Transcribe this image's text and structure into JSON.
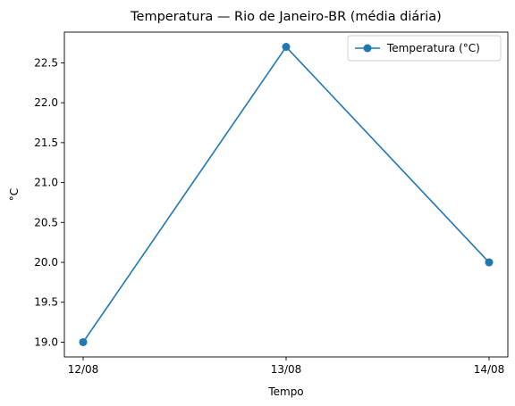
{
  "chart_data": {
    "type": "line",
    "title": "Temperatura — Rio de Janeiro-BR (média diária)",
    "xlabel": "Tempo",
    "ylabel": "°C",
    "categories": [
      "12/08",
      "13/08",
      "14/08"
    ],
    "series": [
      {
        "name": "Temperatura (°C)",
        "values": [
          19.0,
          22.7,
          20.0
        ],
        "color": "#1f77b4",
        "marker": "circle"
      }
    ],
    "ylim": [
      18.815,
      22.885
    ],
    "yticks": [
      19.0,
      19.5,
      20.0,
      20.5,
      21.0,
      21.5,
      22.0,
      22.5
    ],
    "ytick_labels": [
      "19.0",
      "19.5",
      "20.0",
      "20.5",
      "21.0",
      "21.5",
      "22.0",
      "22.5"
    ],
    "grid": false,
    "legend_position": "top-right"
  }
}
